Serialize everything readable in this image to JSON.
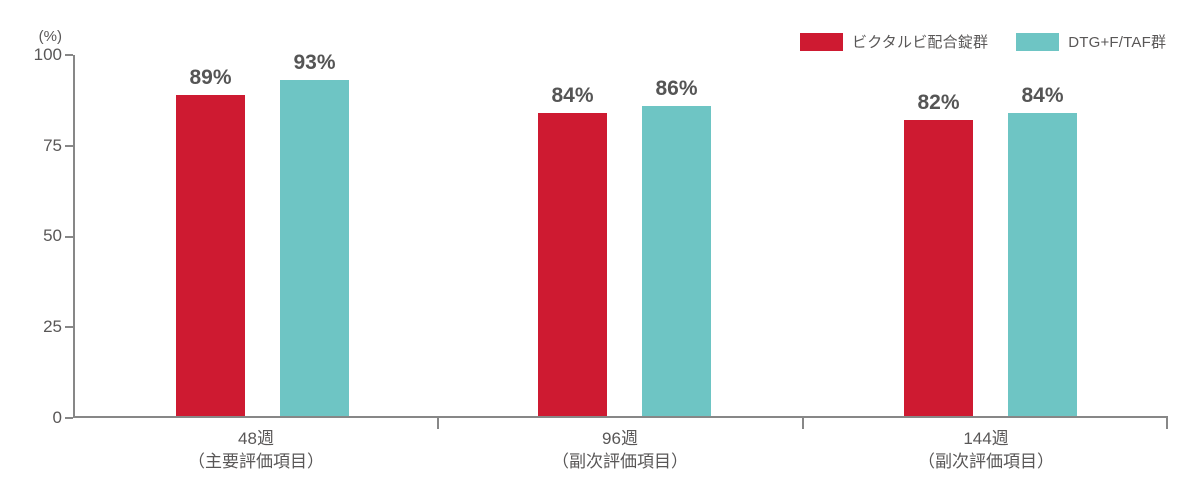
{
  "chart_data": {
    "type": "bar",
    "title": "",
    "unit_label": "(%)",
    "ylim": [
      0,
      100
    ],
    "yticks": [
      "100",
      "75",
      "50",
      "25",
      "0"
    ],
    "grid": false,
    "legend_position": "top-right",
    "categories": [
      {
        "label": "48週",
        "sublabel": "（主要評価項目）"
      },
      {
        "label": "96週",
        "sublabel": "（副次評価項目）"
      },
      {
        "label": "144週",
        "sublabel": "（副次評価項目）"
      }
    ],
    "series": [
      {
        "name": "ビクタルビ配合錠群",
        "color": "#CE1A31",
        "values": [
          89,
          84,
          82
        ],
        "value_labels": [
          "89%",
          "84%",
          "82%"
        ]
      },
      {
        "name": "DTG+F/TAF群",
        "color": "#6EC5C4",
        "values": [
          93,
          86,
          84
        ],
        "value_labels": [
          "93%",
          "86%",
          "84%"
        ]
      }
    ]
  },
  "colors": {
    "axis": "#878787",
    "text": "#595757"
  }
}
